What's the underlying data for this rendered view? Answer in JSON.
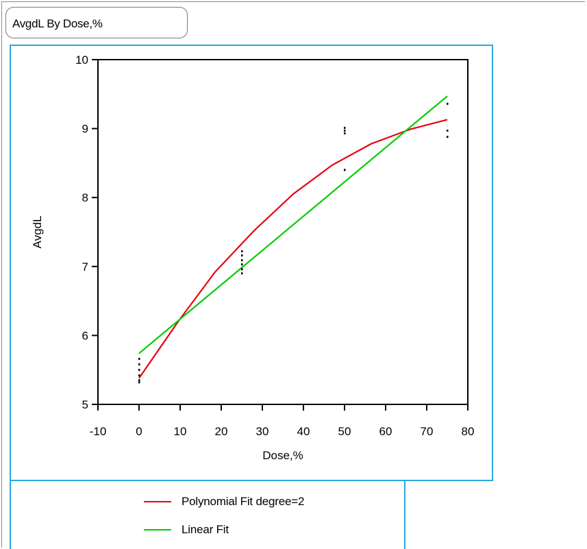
{
  "title": "AvgdL By Dose,%",
  "colors": {
    "frame": "#29a9e0",
    "poly": "#e8000b",
    "linear": "#00cc00",
    "points": "#000000"
  },
  "legend": {
    "poly_label": "Polynomial Fit degree=2",
    "linear_label": "Linear Fit"
  },
  "chart_data": {
    "type": "scatter",
    "title": "AvgdL By Dose,%",
    "xlabel": "Dose,%",
    "ylabel": "AvgdL",
    "xlim": [
      -10,
      80
    ],
    "ylim": [
      5,
      10
    ],
    "xticks": [
      "-10",
      "0",
      "10",
      "20",
      "30",
      "40",
      "50",
      "60",
      "70",
      "80"
    ],
    "yticks": [
      "5",
      "6",
      "7",
      "8",
      "9",
      "10"
    ],
    "grid": false,
    "legend_position": "bottom",
    "points": [
      {
        "x": 0,
        "y": 5.66
      },
      {
        "x": 0,
        "y": 5.58
      },
      {
        "x": 0,
        "y": 5.5
      },
      {
        "x": 0,
        "y": 5.42
      },
      {
        "x": 0,
        "y": 5.35
      },
      {
        "x": 0,
        "y": 5.32
      },
      {
        "x": 25,
        "y": 7.22
      },
      {
        "x": 25,
        "y": 7.16
      },
      {
        "x": 25,
        "y": 7.09
      },
      {
        "x": 25,
        "y": 7.03
      },
      {
        "x": 25,
        "y": 6.96
      },
      {
        "x": 25,
        "y": 6.9
      },
      {
        "x": 50,
        "y": 9.01
      },
      {
        "x": 50,
        "y": 8.97
      },
      {
        "x": 50,
        "y": 8.93
      },
      {
        "x": 50,
        "y": 8.4
      },
      {
        "x": 75,
        "y": 9.36
      },
      {
        "x": 75,
        "y": 8.97
      },
      {
        "x": 75,
        "y": 8.88
      }
    ],
    "series": [
      {
        "name": "Polynomial Fit degree=2",
        "x": [
          0,
          9.5,
          18.5,
          28,
          37.5,
          47,
          56.5,
          66,
          75
        ],
        "y": [
          5.38,
          6.2,
          6.92,
          7.52,
          8.05,
          8.47,
          8.78,
          8.99,
          9.13
        ]
      },
      {
        "name": "Linear Fit",
        "x": [
          0,
          75
        ],
        "y": [
          5.74,
          9.47
        ]
      }
    ]
  }
}
